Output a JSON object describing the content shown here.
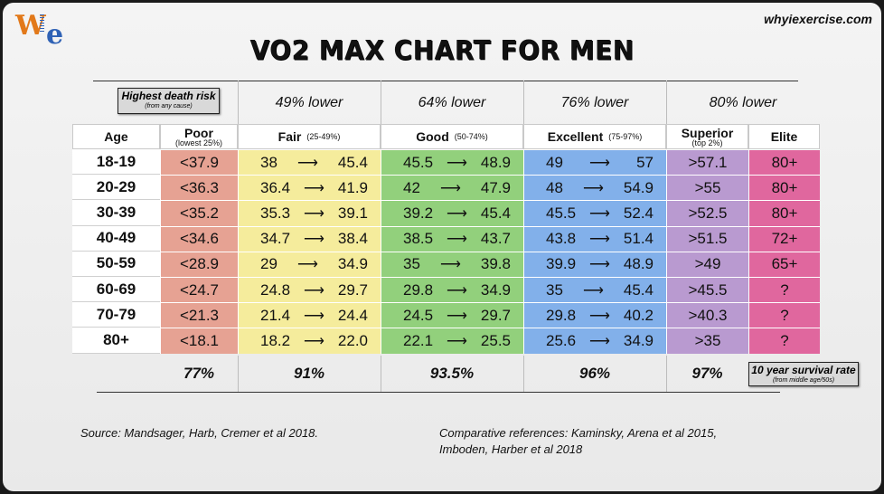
{
  "site_label": "whyiexercise.com",
  "logo": {
    "letter_w": "W",
    "letter_e": "e"
  },
  "title": "VO2 MAX CHART FOR MEN",
  "death_risk_box": {
    "title": "Highest death risk",
    "subtitle": "(from any cause)"
  },
  "lower_labels": [
    "49% lower",
    "64% lower",
    "76% lower",
    "80% lower"
  ],
  "headers": {
    "age": "Age",
    "poor": {
      "label": "Poor",
      "sub": "(lowest 25%)"
    },
    "fair": {
      "label": "Fair",
      "sub": "(25-49%)"
    },
    "good": {
      "label": "Good",
      "sub": "(50-74%)"
    },
    "excellent": {
      "label": "Excellent",
      "sub": "(75-97%)"
    },
    "superior": {
      "label": "Superior",
      "sub": "(top 2%)"
    },
    "elite": {
      "label": "Elite"
    }
  },
  "arrow_glyph": "⟶",
  "rows": [
    {
      "age": "18-19",
      "poor": "<37.9",
      "fair": [
        "38",
        "45.4"
      ],
      "good": [
        "45.5",
        "48.9"
      ],
      "excellent": [
        "49",
        "57"
      ],
      "superior": ">57.1",
      "elite": "80+"
    },
    {
      "age": "20-29",
      "poor": "<36.3",
      "fair": [
        "36.4",
        "41.9"
      ],
      "good": [
        "42",
        "47.9"
      ],
      "excellent": [
        "48",
        "54.9"
      ],
      "superior": ">55",
      "elite": "80+"
    },
    {
      "age": "30-39",
      "poor": "<35.2",
      "fair": [
        "35.3",
        "39.1"
      ],
      "good": [
        "39.2",
        "45.4"
      ],
      "excellent": [
        "45.5",
        "52.4"
      ],
      "superior": ">52.5",
      "elite": "80+"
    },
    {
      "age": "40-49",
      "poor": "<34.6",
      "fair": [
        "34.7",
        "38.4"
      ],
      "good": [
        "38.5",
        "43.7"
      ],
      "excellent": [
        "43.8",
        "51.4"
      ],
      "superior": ">51.5",
      "elite": "72+"
    },
    {
      "age": "50-59",
      "poor": "<28.9",
      "fair": [
        "29",
        "34.9"
      ],
      "good": [
        "35",
        "39.8"
      ],
      "excellent": [
        "39.9",
        "48.9"
      ],
      "superior": ">49",
      "elite": "65+"
    },
    {
      "age": "60-69",
      "poor": "<24.7",
      "fair": [
        "24.8",
        "29.7"
      ],
      "good": [
        "29.8",
        "34.9"
      ],
      "excellent": [
        "35",
        "45.4"
      ],
      "superior": ">45.5",
      "elite": "?"
    },
    {
      "age": "70-79",
      "poor": "<21.3",
      "fair": [
        "21.4",
        "24.4"
      ],
      "good": [
        "24.5",
        "29.7"
      ],
      "excellent": [
        "29.8",
        "40.2"
      ],
      "superior": ">40.3",
      "elite": "?"
    },
    {
      "age": "80+",
      "poor": "<18.1",
      "fair": [
        "18.2",
        "22.0"
      ],
      "good": [
        "22.1",
        "25.5"
      ],
      "excellent": [
        "25.6",
        "34.9"
      ],
      "superior": ">35",
      "elite": "?"
    }
  ],
  "survival": [
    "77%",
    "91%",
    "93.5%",
    "96%",
    "97%"
  ],
  "survival_box": {
    "title": "10 year survival rate",
    "subtitle": "(from middle age/50s)"
  },
  "source": "Source:  Mandsager, Harb, Cremer et al 2018.",
  "comparative": [
    "Comparative references:  Kaminsky, Arena et al 2015,",
    "Imboden, Harber et al 2018"
  ],
  "colors": {
    "poor": "#e6a293",
    "fair": "#f5ec9c",
    "good": "#92d07c",
    "excellent": "#82b0ea",
    "superior": "#b99ad0",
    "elite": "#e0679e"
  }
}
